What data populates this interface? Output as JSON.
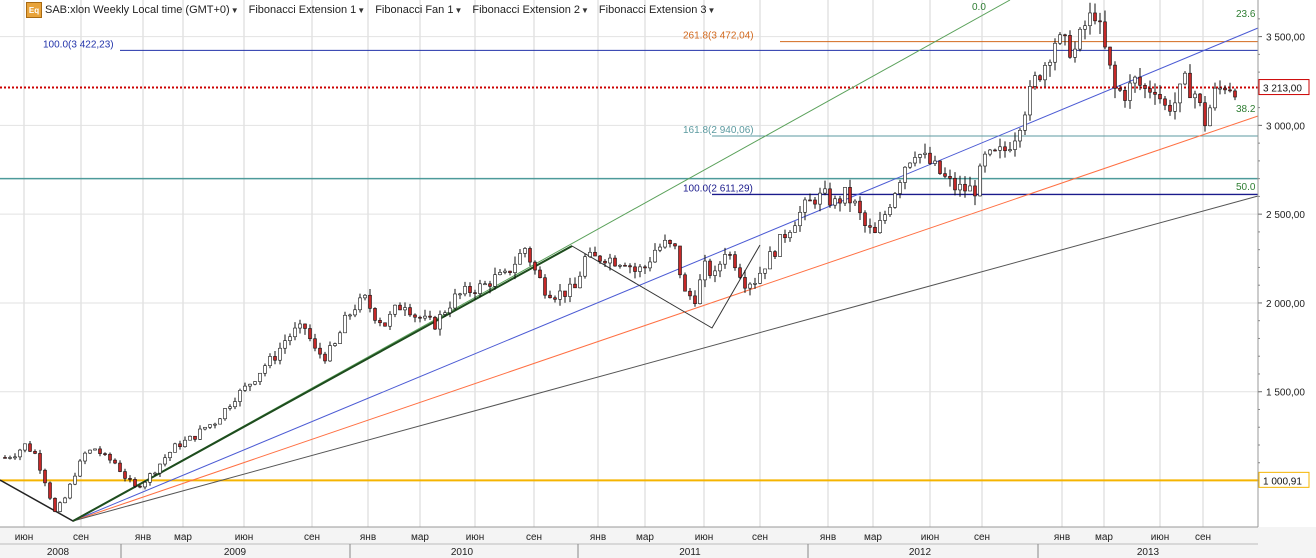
{
  "toolbar": {
    "symbol_label": "SAB:xlon Weekly Local time (GMT+0)",
    "items": [
      "Fibonacci Extension 1",
      "Fibonacci Fan 1",
      "Fibonacci Extension 2",
      "Fibonacci Extension 3"
    ],
    "icon": "eq-icon"
  },
  "chart_data": {
    "type": "candlestick",
    "title": "SAB:xlon Weekly Local time (GMT+0)",
    "y_axis": {
      "ticks": [
        1500,
        2000,
        2500,
        3000,
        3500
      ],
      "tick_labels": [
        "1 500,00",
        "2 000,00",
        "2 500,00",
        "3 000,00",
        "3 500,00"
      ],
      "range": [
        760,
        3700
      ],
      "position": "right"
    },
    "x_axis": {
      "month_labels": [
        "июн",
        "сен",
        "янв",
        "мар",
        "июн",
        "сен",
        "янв",
        "мар",
        "июн",
        "сен",
        "янв",
        "мар",
        "июн",
        "сен",
        "янв",
        "мар",
        "июн",
        "сен",
        "янв",
        "мар",
        "июн",
        "сен"
      ],
      "year_labels": [
        "2008",
        "2009",
        "2010",
        "2011",
        "2012",
        "2013"
      ]
    },
    "price_markers": [
      {
        "label": "3 213,00",
        "value": 3213,
        "color": "#cc0000",
        "style": "dotted"
      },
      {
        "label": "1 000,91",
        "value": 1000.91,
        "color": "#f5b400",
        "style": "solid"
      }
    ],
    "fib_extension_levels": [
      {
        "label": "100.0(3 422,23)",
        "value": 3422.23,
        "color": "#2233aa"
      },
      {
        "label": "261.8(3 472,04)",
        "value": 3472.04,
        "color": "#d2691e"
      },
      {
        "label": "161.8(2 940,06)",
        "value": 2940.06,
        "color": "#5b9aa0"
      },
      {
        "label": "100.0(2 611,29)",
        "value": 2611.29,
        "color": "#1a1a8c"
      }
    ],
    "fib_fan_labels": [
      {
        "label": "0.0",
        "color": "#2e7d32"
      },
      {
        "label": "23.6",
        "color": "#2e7d32"
      },
      {
        "label": "38.2",
        "color": "#2e7d32"
      },
      {
        "label": "50.0",
        "color": "#2e7d32"
      }
    ],
    "horizontal_line": {
      "value": 2700,
      "color": "#4d9a9a"
    },
    "price_path": [
      {
        "t": 0,
        "p": 1130
      },
      {
        "t": 2,
        "p": 1150
      },
      {
        "t": 4,
        "p": 1200
      },
      {
        "t": 6,
        "p": 1150
      },
      {
        "t": 8,
        "p": 1000
      },
      {
        "t": 10,
        "p": 820
      },
      {
        "t": 12,
        "p": 900
      },
      {
        "t": 14,
        "p": 1040
      },
      {
        "t": 16,
        "p": 1150
      },
      {
        "t": 18,
        "p": 1180
      },
      {
        "t": 20,
        "p": 1130
      },
      {
        "t": 22,
        "p": 1100
      },
      {
        "t": 24,
        "p": 1020
      },
      {
        "t": 26,
        "p": 960
      },
      {
        "t": 28,
        "p": 1000
      },
      {
        "t": 30,
        "p": 1060
      },
      {
        "t": 32,
        "p": 1130
      },
      {
        "t": 34,
        "p": 1190
      },
      {
        "t": 36,
        "p": 1220
      },
      {
        "t": 38,
        "p": 1250
      },
      {
        "t": 40,
        "p": 1300
      },
      {
        "t": 42,
        "p": 1330
      },
      {
        "t": 44,
        "p": 1400
      },
      {
        "t": 46,
        "p": 1470
      },
      {
        "t": 48,
        "p": 1520
      },
      {
        "t": 50,
        "p": 1580
      },
      {
        "t": 52,
        "p": 1650
      },
      {
        "t": 54,
        "p": 1700
      },
      {
        "t": 56,
        "p": 1790
      },
      {
        "t": 58,
        "p": 1840
      },
      {
        "t": 60,
        "p": 1860
      },
      {
        "t": 62,
        "p": 1730
      },
      {
        "t": 64,
        "p": 1700
      },
      {
        "t": 66,
        "p": 1760
      },
      {
        "t": 68,
        "p": 1900
      },
      {
        "t": 70,
        "p": 1980
      },
      {
        "t": 72,
        "p": 2020
      },
      {
        "t": 74,
        "p": 1930
      },
      {
        "t": 76,
        "p": 1880
      },
      {
        "t": 78,
        "p": 1960
      },
      {
        "t": 80,
        "p": 2000
      },
      {
        "t": 82,
        "p": 1930
      },
      {
        "t": 84,
        "p": 1900
      },
      {
        "t": 86,
        "p": 1880
      },
      {
        "t": 88,
        "p": 1960
      },
      {
        "t": 90,
        "p": 2030
      },
      {
        "t": 92,
        "p": 2060
      },
      {
        "t": 94,
        "p": 2080
      },
      {
        "t": 96,
        "p": 2100
      },
      {
        "t": 98,
        "p": 2140
      },
      {
        "t": 100,
        "p": 2150
      },
      {
        "t": 102,
        "p": 2230
      },
      {
        "t": 104,
        "p": 2310
      },
      {
        "t": 106,
        "p": 2180
      },
      {
        "t": 108,
        "p": 2080
      },
      {
        "t": 110,
        "p": 2050
      },
      {
        "t": 112,
        "p": 2060
      },
      {
        "t": 114,
        "p": 2080
      },
      {
        "t": 116,
        "p": 2250
      },
      {
        "t": 118,
        "p": 2250
      },
      {
        "t": 120,
        "p": 2260
      },
      {
        "t": 122,
        "p": 2240
      },
      {
        "t": 124,
        "p": 2240
      },
      {
        "t": 126,
        "p": 2180
      },
      {
        "t": 128,
        "p": 2200
      },
      {
        "t": 130,
        "p": 2300
      },
      {
        "t": 132,
        "p": 2330
      },
      {
        "t": 134,
        "p": 2300
      },
      {
        "t": 136,
        "p": 2050
      },
      {
        "t": 138,
        "p": 2030
      },
      {
        "t": 140,
        "p": 2200
      },
      {
        "t": 142,
        "p": 2150
      },
      {
        "t": 144,
        "p": 2300
      },
      {
        "t": 146,
        "p": 2230
      },
      {
        "t": 148,
        "p": 2120
      },
      {
        "t": 150,
        "p": 2130
      },
      {
        "t": 152,
        "p": 2220
      },
      {
        "t": 154,
        "p": 2300
      },
      {
        "t": 156,
        "p": 2390
      },
      {
        "t": 158,
        "p": 2470
      },
      {
        "t": 160,
        "p": 2540
      },
      {
        "t": 162,
        "p": 2590
      },
      {
        "t": 164,
        "p": 2600
      },
      {
        "t": 166,
        "p": 2560
      },
      {
        "t": 168,
        "p": 2610
      },
      {
        "t": 170,
        "p": 2550
      },
      {
        "t": 172,
        "p": 2430
      },
      {
        "t": 174,
        "p": 2380
      },
      {
        "t": 176,
        "p": 2500
      },
      {
        "t": 178,
        "p": 2640
      },
      {
        "t": 180,
        "p": 2780
      },
      {
        "t": 182,
        "p": 2860
      },
      {
        "t": 184,
        "p": 2810
      },
      {
        "t": 186,
        "p": 2760
      },
      {
        "t": 188,
        "p": 2700
      },
      {
        "t": 190,
        "p": 2650
      },
      {
        "t": 192,
        "p": 2640
      },
      {
        "t": 194,
        "p": 2640
      },
      {
        "t": 196,
        "p": 2810
      },
      {
        "t": 198,
        "p": 2830
      },
      {
        "t": 200,
        "p": 2860
      },
      {
        "t": 202,
        "p": 2950
      },
      {
        "t": 204,
        "p": 3100
      },
      {
        "t": 206,
        "p": 3250
      },
      {
        "t": 208,
        "p": 3350
      },
      {
        "t": 210,
        "p": 3480
      },
      {
        "t": 212,
        "p": 3450
      },
      {
        "t": 214,
        "p": 3420
      },
      {
        "t": 216,
        "p": 3560
      },
      {
        "t": 218,
        "p": 3640
      },
      {
        "t": 220,
        "p": 3420
      },
      {
        "t": 222,
        "p": 3200
      },
      {
        "t": 224,
        "p": 3180
      },
      {
        "t": 226,
        "p": 3250
      },
      {
        "t": 228,
        "p": 3200
      },
      {
        "t": 230,
        "p": 3220
      },
      {
        "t": 232,
        "p": 3100
      },
      {
        "t": 234,
        "p": 3130
      },
      {
        "t": 236,
        "p": 3240
      },
      {
        "t": 238,
        "p": 3180
      },
      {
        "t": 240,
        "p": 3020
      },
      {
        "t": 242,
        "p": 3180
      },
      {
        "t": 244,
        "p": 3230
      },
      {
        "t": 246,
        "p": 3213
      }
    ]
  }
}
